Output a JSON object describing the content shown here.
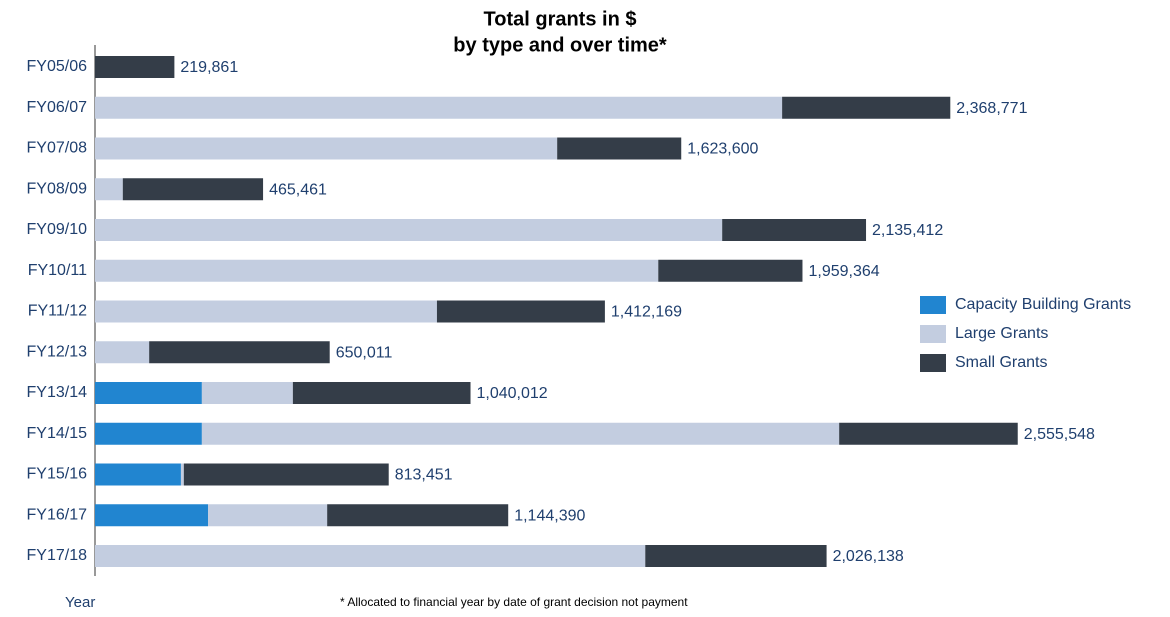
{
  "chart_data": {
    "type": "stacked-bar-horizontal",
    "title": [
      "Total grants in $",
      "by type and over time*"
    ],
    "y_label": "Year",
    "footnote": "* Allocated to financial year by date of grant decision not payment",
    "categories": [
      "FY05/06",
      "FY06/07",
      "FY07/08",
      "FY08/09",
      "FY09/10",
      "FY10/11",
      "FY11/12",
      "FY12/13",
      "FY13/14",
      "FY14/15",
      "FY15/16",
      "FY16/17",
      "FY17/18"
    ],
    "series": [
      {
        "name": "Capacity Building Grants",
        "color": "#2185d0",
        "values": [
          null,
          null,
          null,
          null,
          null,
          null,
          null,
          null,
          296000,
          296000,
          238000,
          313000,
          null
        ]
      },
      {
        "name": "Large Grants",
        "color": "#c3cde0",
        "values": [
          null,
          1903000,
          1280000,
          77000,
          1737000,
          1560000,
          947000,
          150000,
          252000,
          1765000,
          8000,
          330000,
          1524000
        ]
      },
      {
        "name": "Small Grants",
        "color": "#343d48",
        "values": [
          219861,
          465771,
          343600,
          388461,
          398412,
          399364,
          465169,
          500011,
          492012,
          494548,
          567451,
          501390,
          502138
        ]
      }
    ],
    "totals": [
      {
        "value": 219861,
        "label": "219,861"
      },
      {
        "value": 2368771,
        "label": "2,368,771"
      },
      {
        "value": 1623600,
        "label": "1,623,600"
      },
      {
        "value": 465461,
        "label": "465,461"
      },
      {
        "value": 2135412,
        "label": "2,135,412"
      },
      {
        "value": 1959364,
        "label": "1,959,364"
      },
      {
        "value": 1412169,
        "label": "1,412,169"
      },
      {
        "value": 650011,
        "label": "650,011"
      },
      {
        "value": 1040012,
        "label": "1,040,012"
      },
      {
        "value": 2555548,
        "label": "2,555,548"
      },
      {
        "value": 813451,
        "label": "813,451"
      },
      {
        "value": 1144390,
        "label": "1,144,390"
      },
      {
        "value": 2026138,
        "label": "2,026,138"
      }
    ],
    "xlim": [
      0,
      2800000
    ],
    "legend": "right"
  }
}
